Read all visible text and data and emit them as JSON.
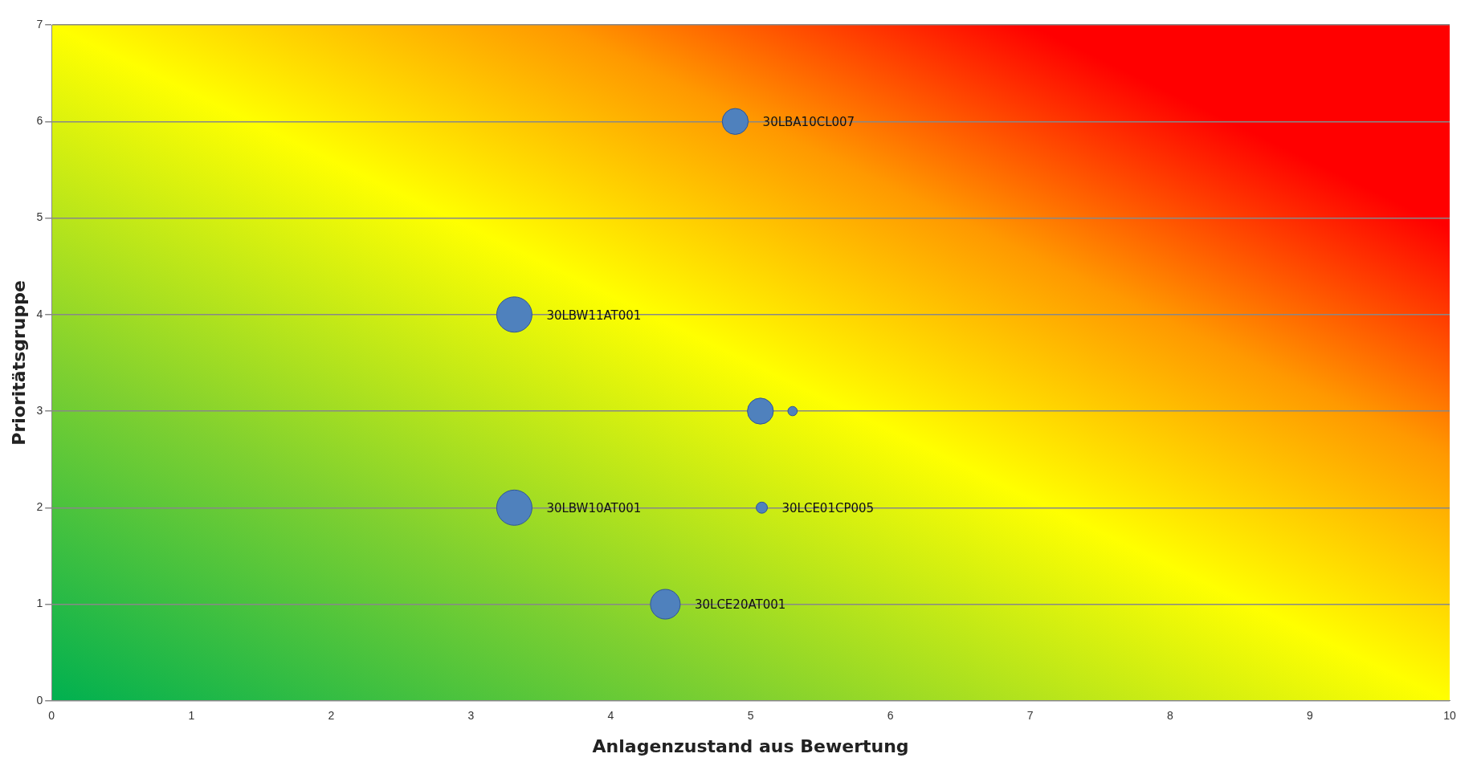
{
  "chart_data": {
    "type": "bubble",
    "xlabel": "Anlagenzustand aus Bewertung",
    "ylabel": "Prioritätsgruppe",
    "x": [
      4.89,
      3.31,
      5.07,
      5.3,
      3.31,
      5.08,
      4.39
    ],
    "values": [
      6,
      4,
      3,
      3,
      2,
      2,
      1
    ],
    "sizes": [
      0.54,
      1,
      0.54,
      0.07,
      1,
      0.1,
      0.71
    ],
    "value_labels": [
      "30LBA10CL007",
      "30LBW11AT001",
      null,
      null,
      "30LBW10AT001",
      "30LCE01CP005",
      "30LCE20AT001"
    ],
    "color": "#4f81bd",
    "xlim": [
      0,
      10
    ],
    "xticks": [
      0,
      1,
      2,
      3,
      4,
      5,
      6,
      7,
      8,
      9,
      10
    ],
    "ylim": [
      0,
      7
    ],
    "yticks": [
      0,
      1,
      2,
      3,
      4,
      5,
      6,
      7
    ],
    "grid": "y",
    "legend": false
  }
}
